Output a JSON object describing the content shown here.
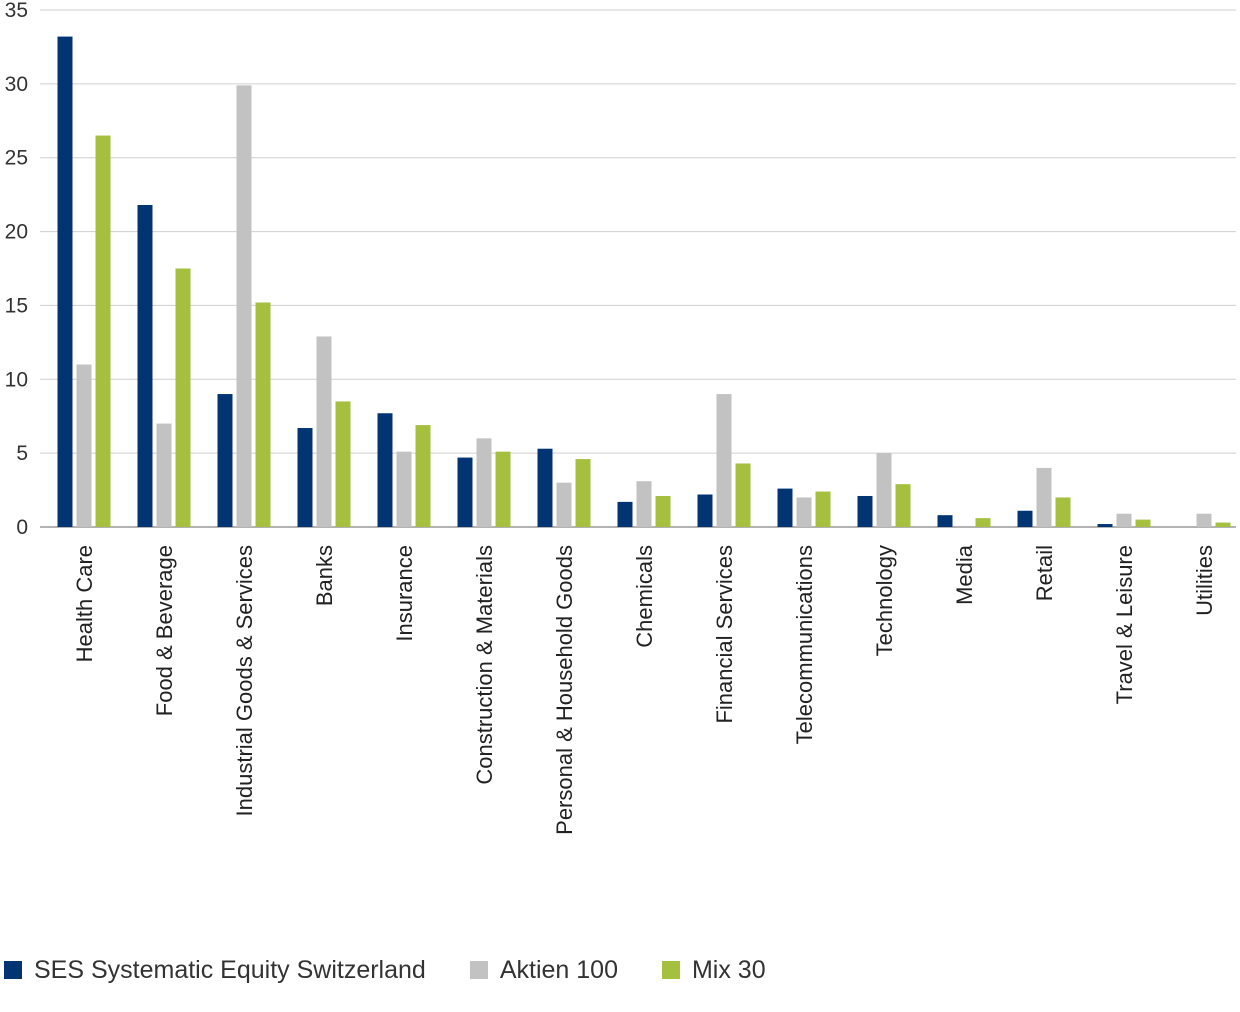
{
  "chart_data": {
    "type": "bar",
    "title": "",
    "xlabel": "",
    "ylabel": "",
    "ylim": [
      0,
      35
    ],
    "yticks": [
      0,
      5,
      10,
      15,
      20,
      25,
      30,
      35
    ],
    "grid": true,
    "legend_position": "bottom-left",
    "categories": [
      "Health Care",
      "Food & Beverage",
      "Industrial Goods & Services",
      "Banks",
      "Insurance",
      "Construction & Materials",
      "Personal & Household Goods",
      "Chemicals",
      "Financial Services",
      "Telecommunications",
      "Technology",
      "Media",
      "Retail",
      "Travel & Leisure",
      "Utilities"
    ],
    "series": [
      {
        "name": "SES Systematic Equity Switzerland",
        "color": "#003473",
        "values": [
          33.2,
          21.8,
          9.0,
          6.7,
          7.7,
          4.7,
          5.3,
          1.7,
          2.2,
          2.6,
          2.1,
          0.8,
          1.1,
          0.2,
          0.0
        ]
      },
      {
        "name": "Aktien 100",
        "color": "#c2c2c2",
        "values": [
          11.0,
          7.0,
          29.9,
          12.9,
          5.1,
          6.0,
          3.0,
          3.1,
          9.0,
          2.0,
          5.0,
          0.0,
          4.0,
          0.9,
          0.9
        ]
      },
      {
        "name": "Mix 30",
        "color": "#a5bf3f",
        "values": [
          26.5,
          17.5,
          15.2,
          8.5,
          6.9,
          5.1,
          4.6,
          2.1,
          4.3,
          2.4,
          2.9,
          0.6,
          2.0,
          0.5,
          0.3
        ]
      }
    ]
  }
}
